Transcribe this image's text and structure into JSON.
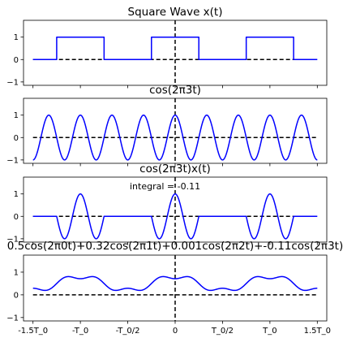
{
  "x_ticks": [
    "-1.5T_0",
    "-T_0",
    "-T_0/2",
    "0",
    "T_0/2",
    "T_0",
    "1.5T_0"
  ],
  "y_ticks": [
    "1",
    "0",
    "−1"
  ],
  "colors": {
    "signal": "#0000ff",
    "reference": "#000000"
  },
  "chart_data": [
    {
      "type": "line",
      "title": "Square Wave x(t)",
      "x": [
        -1.5,
        -1.25,
        -1.25,
        -0.75,
        -0.75,
        -0.25,
        -0.25,
        0.25,
        0.25,
        0.75,
        0.75,
        1.25,
        1.25,
        1.5
      ],
      "y": [
        0,
        0,
        1,
        1,
        0,
        0,
        1,
        1,
        0,
        0,
        1,
        1,
        0,
        0
      ],
      "xlim": [
        -1.5,
        1.5
      ],
      "ylim": [
        -1.15,
        1.75
      ],
      "grid": false
    },
    {
      "type": "line",
      "title": "cos(2π3t)",
      "function": "cos(2*pi*3*t)",
      "xlim": [
        -1.5,
        1.5
      ],
      "ylim": [
        -1.15,
        1.75
      ],
      "grid": false
    },
    {
      "type": "line",
      "title": "cos(2π3t)x(t)",
      "annotation": "integral = -0.11",
      "function": "cos(2*pi*3*t) * x(t)",
      "xlim": [
        -1.5,
        1.5
      ],
      "ylim": [
        -1.15,
        1.75
      ],
      "grid": false
    },
    {
      "type": "line",
      "title": "0.5cos(2π0t)+0.32cos(2π1t)+0.001cos(2π2t)+-0.11cos(2π3t)",
      "coefficients": [
        0.5,
        0.32,
        0.001,
        -0.11
      ],
      "function": "sum a_k cos(2*pi*k*t)",
      "xlim": [
        -1.5,
        1.5
      ],
      "ylim": [
        -1.15,
        1.75
      ],
      "grid": false
    }
  ]
}
